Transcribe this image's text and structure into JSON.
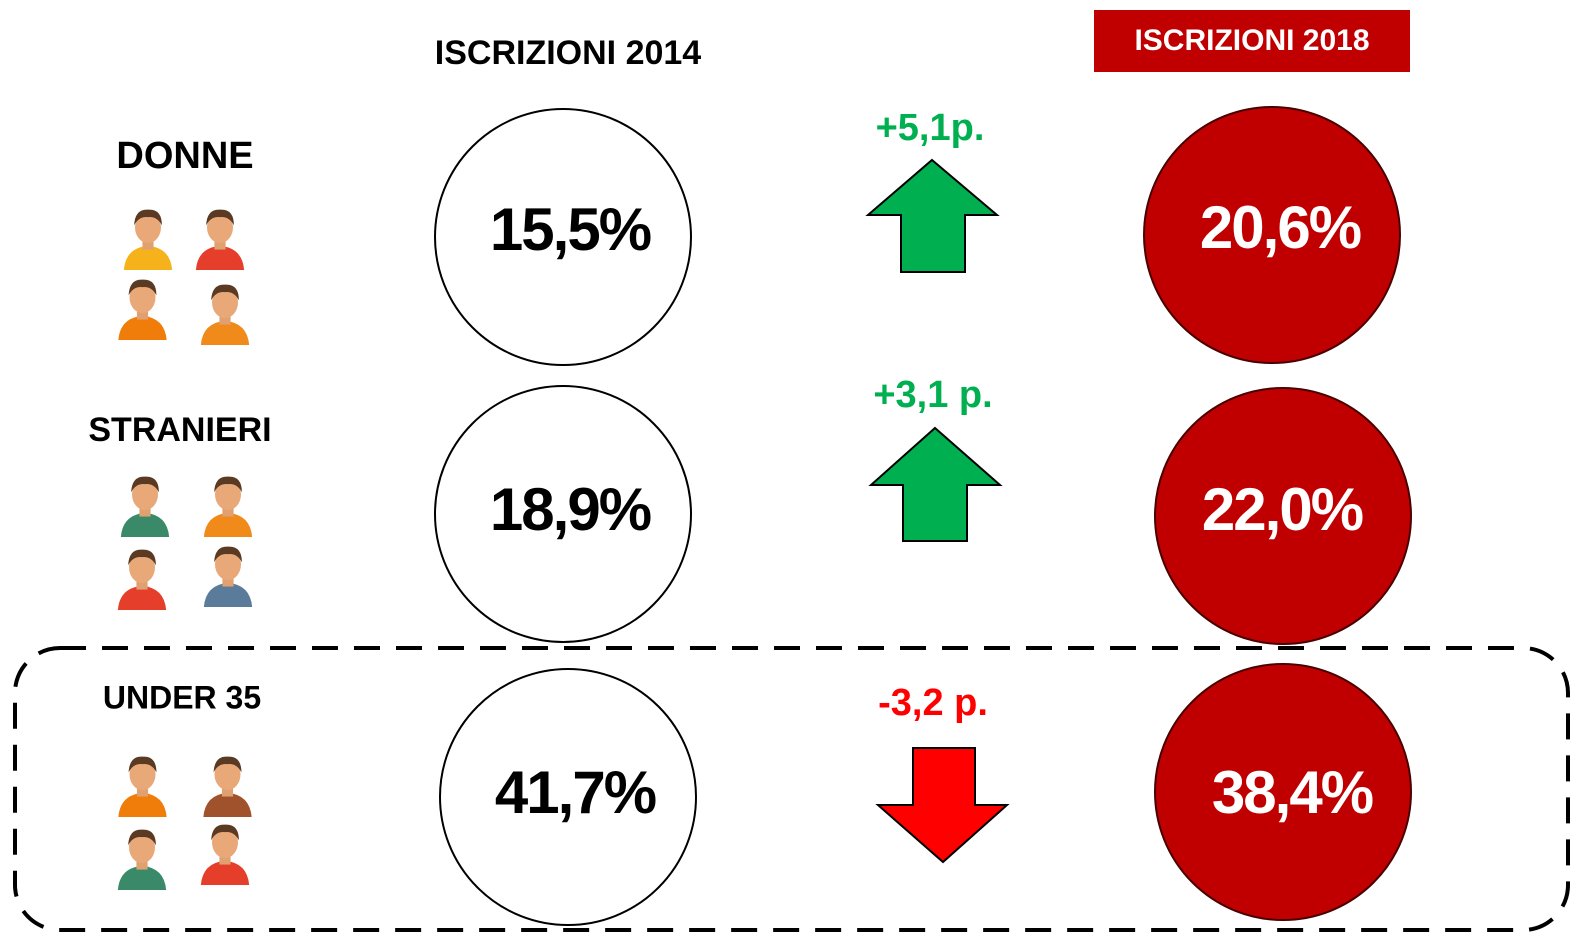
{
  "header": {
    "year_a": "ISCRIZIONI 2014",
    "year_b": "ISCRIZIONI 2018"
  },
  "rows": [
    {
      "label": "DONNE",
      "value_a": "15,5%",
      "change": "+5,1p.",
      "value_b": "20,6%"
    },
    {
      "label": "STRANIERI",
      "value_a": "18,9%",
      "change": "+3,1 p.",
      "value_b": "22,0%"
    },
    {
      "label": "UNDER 35",
      "value_a": "41,7%",
      "change": "-3,2 p.",
      "value_b": "38,4%"
    }
  ]
}
